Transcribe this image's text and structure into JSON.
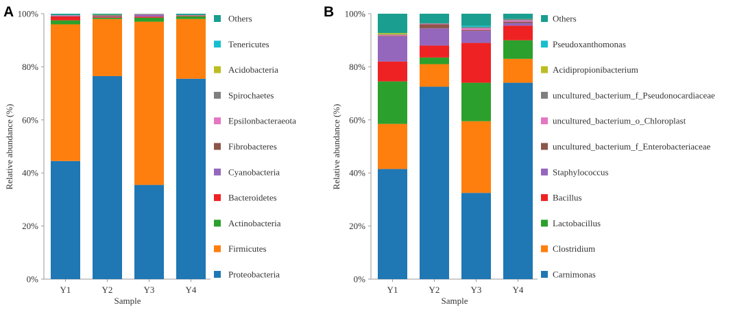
{
  "chart_data": [
    {
      "type": "bar",
      "stacked": true,
      "panel_label": "A",
      "xlabel": "Sample",
      "ylabel": "Relative abundance (%)",
      "ylim": [
        0,
        100
      ],
      "yticks": [
        "0%",
        "20%",
        "40%",
        "60%",
        "80%",
        "100%"
      ],
      "categories": [
        "Y1",
        "Y2",
        "Y3",
        "Y4"
      ],
      "legend_position": "right",
      "series": [
        {
          "name": "Proteobacteria",
          "color": "#1f77b4",
          "values": [
            44.5,
            76.5,
            35.5,
            75.5
          ]
        },
        {
          "name": "Firmicutes",
          "color": "#ff7f0e",
          "values": [
            51.5,
            21.5,
            61.5,
            22.5
          ]
        },
        {
          "name": "Actinobacteria",
          "color": "#2ca02c",
          "values": [
            1.5,
            0.5,
            1.5,
            1.0
          ]
        },
        {
          "name": "Bacteroidetes",
          "color": "#ee2222",
          "values": [
            1.5,
            0.3,
            0.4,
            0.2
          ]
        },
        {
          "name": "Cyanobacteria",
          "color": "#9467bd",
          "values": [
            0.2,
            0.2,
            0.6,
            0.1
          ]
        },
        {
          "name": "Fibrobacteres",
          "color": "#8c564b",
          "values": [
            0.1,
            0.3,
            0.1,
            0.1
          ]
        },
        {
          "name": "Epsilonbacteraeota",
          "color": "#e377c2",
          "values": [
            0.1,
            0.0,
            0.2,
            0.0
          ]
        },
        {
          "name": "Spirochaetes",
          "color": "#7f7f7f",
          "values": [
            0.1,
            0.2,
            0.1,
            0.1
          ]
        },
        {
          "name": "Acidobacteria",
          "color": "#bcbd22",
          "values": [
            0.0,
            0.1,
            0.0,
            0.0
          ]
        },
        {
          "name": "Tenericutes",
          "color": "#17becf",
          "values": [
            0.0,
            0.0,
            0.0,
            0.0
          ]
        },
        {
          "name": "Others",
          "color": "#1a9e8f",
          "values": [
            0.5,
            0.4,
            0.1,
            0.5
          ]
        }
      ]
    },
    {
      "type": "bar",
      "stacked": true,
      "panel_label": "B",
      "xlabel": "Sample",
      "ylabel": "Relative abundance (%)",
      "ylim": [
        0,
        100
      ],
      "yticks": [
        "0%",
        "20%",
        "40%",
        "60%",
        "80%",
        "100%"
      ],
      "categories": [
        "Y1",
        "Y2",
        "Y3",
        "Y4"
      ],
      "legend_position": "right",
      "series": [
        {
          "name": "Carnimonas",
          "color": "#1f77b4",
          "values": [
            41.5,
            72.5,
            32.5,
            74.0
          ]
        },
        {
          "name": "Clostridium",
          "color": "#ff7f0e",
          "values": [
            17.0,
            8.5,
            27.0,
            9.0
          ]
        },
        {
          "name": "Lactobacillus",
          "color": "#2ca02c",
          "values": [
            16.0,
            2.5,
            14.5,
            7.0
          ]
        },
        {
          "name": "Bacillus",
          "color": "#ee2222",
          "values": [
            7.5,
            4.5,
            15.0,
            5.5
          ]
        },
        {
          "name": "Staphylococcus",
          "color": "#9467bd",
          "values": [
            9.5,
            6.5,
            4.5,
            1.0
          ]
        },
        {
          "name": "uncultured_bacterium_f_Enterobacteriaceae",
          "color": "#8c564b",
          "values": [
            0.2,
            1.5,
            0.3,
            0.5
          ]
        },
        {
          "name": "uncultured_bacterium_o_Chloroplast",
          "color": "#e377c2",
          "values": [
            0.3,
            0.2,
            0.7,
            0.5
          ]
        },
        {
          "name": "uncultured_bacterium_f_Pseudonocardiaceae",
          "color": "#7f7f7f",
          "values": [
            0.2,
            0.2,
            0.5,
            0.5
          ]
        },
        {
          "name": "Acidipropionibacterium",
          "color": "#bcbd22",
          "values": [
            0.5,
            0.0,
            0.0,
            0.0
          ]
        },
        {
          "name": "Pseudoxanthomonas",
          "color": "#17becf",
          "values": [
            0.0,
            0.0,
            0.5,
            0.0
          ]
        },
        {
          "name": "Others",
          "color": "#1a9e8f",
          "values": [
            7.3,
            3.6,
            4.5,
            2.0
          ]
        }
      ]
    }
  ]
}
